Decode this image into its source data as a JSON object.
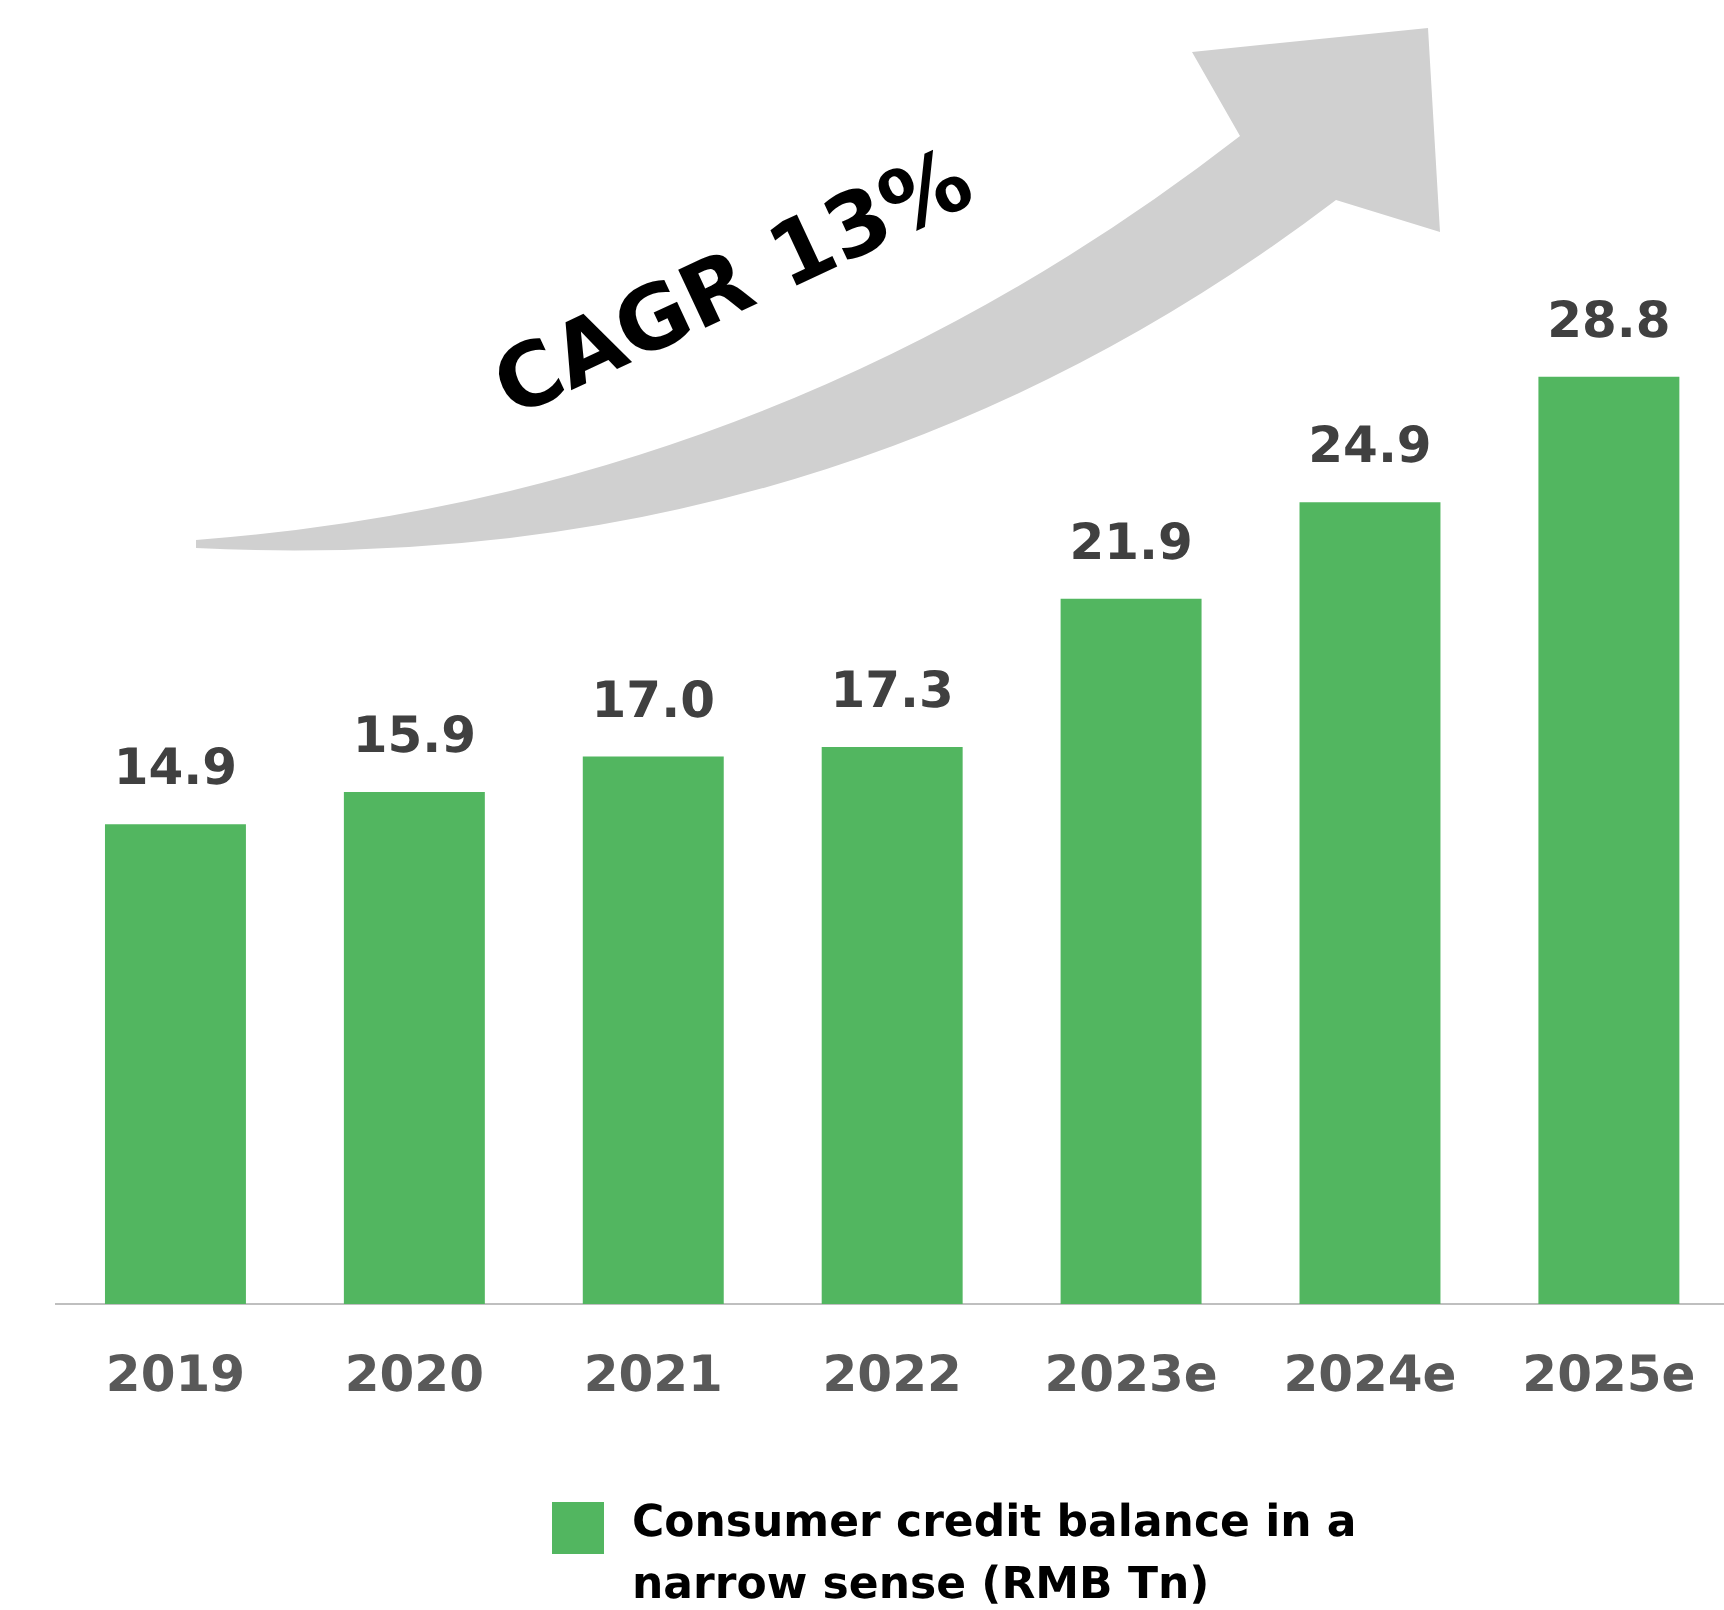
{
  "chart_data": {
    "type": "bar",
    "categories": [
      "2019",
      "2020",
      "2021",
      "2022",
      "2023e",
      "2024e",
      "2025e"
    ],
    "series": [
      {
        "name": "Consumer credit balance in a narrow sense (RMB Tn)",
        "color": "#52b660",
        "values": [
          14.9,
          15.9,
          17.0,
          17.3,
          21.9,
          24.9,
          28.8
        ],
        "value_labels": [
          "14.9",
          "15.9",
          "17.0",
          "17.3",
          "21.9",
          "24.9",
          "28.8"
        ]
      }
    ],
    "grid": false,
    "legend": "bottom",
    "annotations": [
      "CAGR 13%"
    ]
  }
}
